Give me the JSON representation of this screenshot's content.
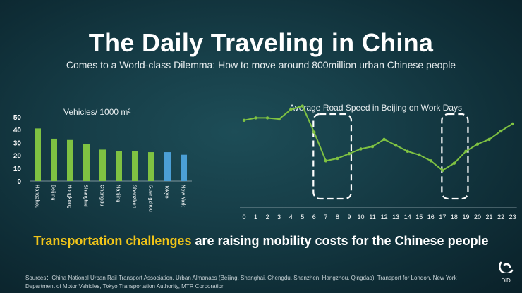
{
  "title": "The Daily Traveling in China",
  "subtitle": "Comes to a World-class Dilemma: How to move around 800million urban Chinese people",
  "chart_data": [
    {
      "type": "bar",
      "title": "Vehicles/ 1000 m²",
      "categories": [
        "Hangzhou",
        "Beijing",
        "Hongkong",
        "Shanghai",
        "Chengdu",
        "Nanjing",
        "Shenzhen",
        "Guangzhou",
        "Tokyo",
        "New York"
      ],
      "values": [
        41,
        33,
        32,
        29,
        24.5,
        23.5,
        23.5,
        22.5,
        22.5,
        20.5
      ],
      "colors": [
        "#7fc242",
        "#7fc242",
        "#7fc242",
        "#7fc242",
        "#7fc242",
        "#7fc242",
        "#7fc242",
        "#7fc242",
        "#4b9fd5",
        "#4b9fd5"
      ],
      "yticks": [
        0,
        10,
        20,
        30,
        40,
        50
      ],
      "ylim": [
        0,
        50
      ]
    },
    {
      "type": "line",
      "title": "Average Road Speed in Beijing on Work Days",
      "x": [
        0,
        1,
        2,
        3,
        4,
        5,
        6,
        7,
        8,
        9,
        10,
        11,
        12,
        13,
        14,
        15,
        16,
        17,
        18,
        19,
        20,
        21,
        22,
        23
      ],
      "values": [
        37,
        38,
        38,
        37.5,
        41.5,
        43,
        32,
        20,
        21,
        23,
        25,
        26,
        29,
        26.5,
        24,
        22.5,
        20,
        16,
        19,
        24,
        27,
        29,
        32.5,
        35.5
      ],
      "xticks": [
        "0",
        "1",
        "2",
        "3",
        "4",
        "5",
        "6",
        "7",
        "8",
        "9",
        "10",
        "11",
        "12",
        "13",
        "14",
        "15",
        "16",
        "17",
        "18",
        "19",
        "20",
        "21",
        "22",
        "23"
      ],
      "ylim": [
        0,
        60
      ],
      "line_color": "#7fc242",
      "highlighted_ranges": [
        [
          6,
          9
        ],
        [
          17,
          19
        ]
      ]
    }
  ],
  "headline": {
    "highlight": "Transportation challenges",
    "rest": " are raising mobility costs for the Chinese people"
  },
  "sources_text": "Sources：China National Urban Rail Transport Association, Urban Almanacs (Beijing, Shanghai, Chengdu, Shenzhen, Hangzhou, Qingdao), Transport for London, New York Department of Motor Vehicles, Tokyo Transportation Authority, MTR Corporation",
  "logo_text": "DiDi"
}
